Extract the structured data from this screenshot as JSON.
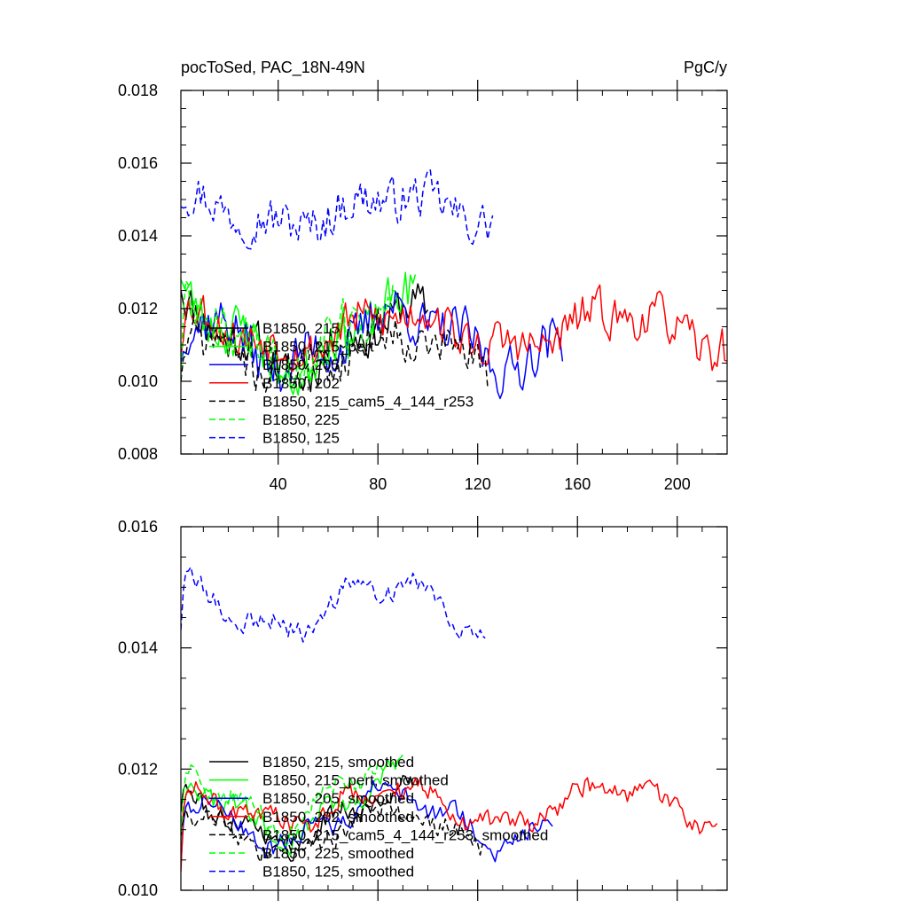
{
  "chart_data": [
    {
      "type": "line",
      "title_left": "pocToSed, PAC_18N-49N",
      "title_right": "PgC/y",
      "xlabel": "",
      "ylabel": "",
      "xlim": [
        1,
        220
      ],
      "ylim": [
        0.008,
        0.018
      ],
      "xticks": [
        40,
        80,
        120,
        160,
        200
      ],
      "xtick_labels": [
        "40",
        "80",
        "120",
        "160",
        "200"
      ],
      "yticks": [
        0.008,
        0.01,
        0.012,
        0.014,
        0.016,
        0.018
      ],
      "ytick_labels": [
        "0.008",
        "0.010",
        "0.012",
        "0.014",
        "0.016",
        "0.018"
      ],
      "grid": false,
      "legend_position": "lower-left",
      "series": [
        {
          "name": "B1850, 215",
          "color": "#000000",
          "dash": "solid",
          "length": 100,
          "mean": 0.0111,
          "amp": 0.0008,
          "noise": 0.0007,
          "start": 0.0125,
          "seed": 11
        },
        {
          "name": "B1850, 215_pert",
          "color": "#00ff00",
          "dash": "solid",
          "length": 95,
          "mean": 0.0113,
          "amp": 0.0009,
          "noise": 0.0008,
          "start": 0.0128,
          "seed": 23
        },
        {
          "name": "B1850, 205",
          "color": "#0000ff",
          "dash": "solid",
          "length": 154,
          "mean": 0.0112,
          "amp": 0.0007,
          "noise": 0.0008,
          "start": 0.0105,
          "seed": 37
        },
        {
          "name": "B1850, 202",
          "color": "#ff0000",
          "dash": "solid",
          "length": 220,
          "mean": 0.0114,
          "amp": 0.0005,
          "noise": 0.0007,
          "start": 0.0107,
          "seed": 53
        },
        {
          "name": "B1850, 215_cam5_4_144_r253",
          "color": "#000000",
          "dash": "dashed",
          "length": 124,
          "mean": 0.0108,
          "amp": 0.0005,
          "noise": 0.0007,
          "start": 0.01,
          "seed": 71
        },
        {
          "name": "B1850, 225",
          "color": "#00ff00",
          "dash": "dashed",
          "length": 86,
          "mean": 0.0113,
          "amp": 0.0008,
          "noise": 0.0009,
          "start": 0.0101,
          "seed": 89
        },
        {
          "name": "B1850, 125",
          "color": "#0000ff",
          "dash": "dashed",
          "length": 126,
          "mean": 0.0147,
          "amp": 0.0004,
          "noise": 0.0007,
          "start": 0.0148,
          "seed": 97
        }
      ]
    },
    {
      "type": "line",
      "title_left": "",
      "title_right": "",
      "xlabel": "",
      "ylabel": "",
      "xlim": [
        1,
        220
      ],
      "ylim": [
        0.01,
        0.016
      ],
      "xticks": [
        40,
        80,
        120,
        160,
        200
      ],
      "xtick_labels": [],
      "yticks": [
        0.01,
        0.012,
        0.014,
        0.016
      ],
      "ytick_labels": [
        "0.010",
        "0.012",
        "0.014",
        "0.016"
      ],
      "grid": false,
      "legend_position": "lower-left",
      "series": [
        {
          "name": "B1850, 215, smoothed",
          "color": "#000000",
          "dash": "solid",
          "length": 94,
          "mean": 0.0112,
          "amp": 0.0004,
          "noise": 0.0002,
          "start": 0.0113,
          "seed": 111
        },
        {
          "name": "B1850, 215_pert, smoothed",
          "color": "#00ff00",
          "dash": "solid",
          "length": 90,
          "mean": 0.0114,
          "amp": 0.0005,
          "noise": 0.0002,
          "start": 0.0106,
          "seed": 123
        },
        {
          "name": "B1850, 205, smoothed",
          "color": "#0000ff",
          "dash": "solid",
          "length": 150,
          "mean": 0.0112,
          "amp": 0.0004,
          "noise": 0.0002,
          "start": 0.0104,
          "seed": 137
        },
        {
          "name": "B1850, 202, smoothed",
          "color": "#ff0000",
          "dash": "solid",
          "length": 216,
          "mean": 0.0114,
          "amp": 0.0003,
          "noise": 0.0002,
          "start": 0.0103,
          "seed": 153
        },
        {
          "name": "B1850, 215_cam5_4_144_r253, smoothed",
          "color": "#000000",
          "dash": "dashed",
          "length": 122,
          "mean": 0.011,
          "amp": 0.0003,
          "noise": 0.0002,
          "start": 0.0109,
          "seed": 171
        },
        {
          "name": "B1850, 225, smoothed",
          "color": "#00ff00",
          "dash": "dashed",
          "length": 84,
          "mean": 0.0116,
          "amp": 0.0005,
          "noise": 0.0002,
          "start": 0.0108,
          "seed": 189
        },
        {
          "name": "B1850, 125, smoothed",
          "color": "#0000ff",
          "dash": "dashed",
          "length": 123,
          "mean": 0.0147,
          "amp": 0.0004,
          "noise": 0.0002,
          "start": 0.0143,
          "seed": 197
        }
      ]
    }
  ]
}
